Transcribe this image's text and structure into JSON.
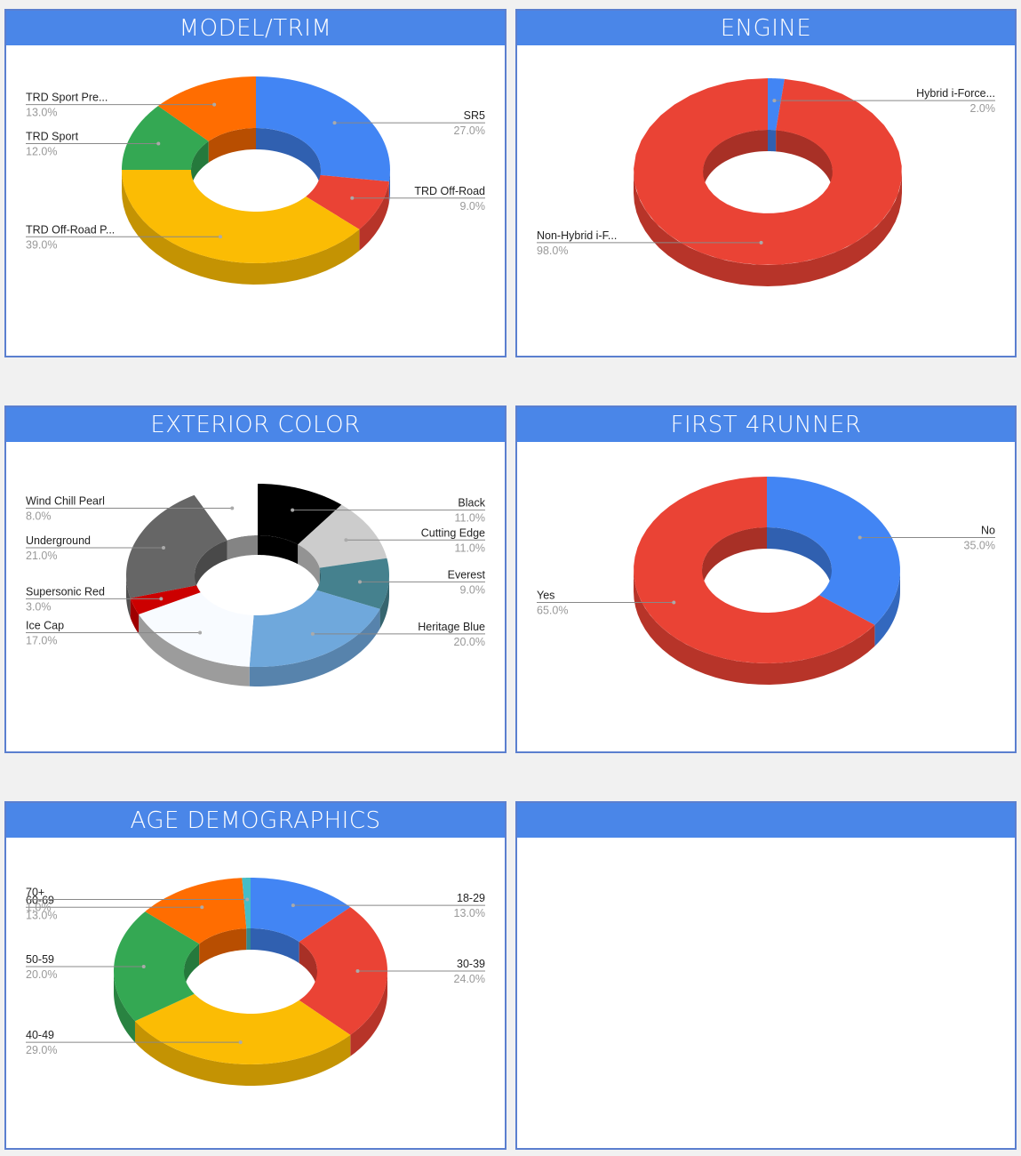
{
  "panels": [
    {
      "id": "model-trim",
      "title": "MODEL/TRIM"
    },
    {
      "id": "engine",
      "title": "ENGINE"
    },
    {
      "id": "exterior-color",
      "title": "EXTERIOR COLOR"
    },
    {
      "id": "first-4runner",
      "title": "FIRST 4RUNNER"
    },
    {
      "id": "age-demographics",
      "title": "AGE DEMOGRAPHICS"
    },
    {
      "id": "empty",
      "title": ""
    }
  ],
  "colors": {
    "header": "#4a86e8",
    "border": "#5b7fcf",
    "background": "#f1f1f1"
  },
  "chart_data": [
    {
      "type": "pie",
      "style": "3d-donut",
      "title": "MODEL/TRIM",
      "categories": [
        "SR5",
        "TRD Off-Road",
        "TRD Off-Road P...",
        "TRD Sport",
        "TRD Sport Pre..."
      ],
      "values": [
        27.0,
        9.0,
        39.0,
        12.0,
        13.0
      ],
      "colors": [
        "#4285f4",
        "#ea4335",
        "#fbbc04",
        "#34a853",
        "#ff6d01"
      ],
      "labels": [
        "27.0%",
        "9.0%",
        "39.0%",
        "12.0%",
        "13.0%"
      ]
    },
    {
      "type": "pie",
      "style": "3d-donut",
      "title": "ENGINE",
      "categories": [
        "Hybrid i-Force...",
        "Non-Hybrid i-F..."
      ],
      "values": [
        2.0,
        98.0
      ],
      "colors": [
        "#4285f4",
        "#ea4335"
      ],
      "labels": [
        "2.0%",
        "98.0%"
      ]
    },
    {
      "type": "pie",
      "style": "3d-donut",
      "title": "EXTERIOR COLOR",
      "categories": [
        "Black",
        "Cutting Edge",
        "Everest",
        "Heritage Blue",
        "Ice Cap",
        "Supersonic Red",
        "Underground",
        "Wind Chill Pearl"
      ],
      "values": [
        11.0,
        11.0,
        9.0,
        20.0,
        17.0,
        3.0,
        21.0,
        8.0
      ],
      "colors": [
        "#000000",
        "#cccccc",
        "#45818e",
        "#6fa8dc",
        "#f8fbff",
        "#cc0000",
        "#666666",
        "#ffffff"
      ],
      "labels": [
        "11.0%",
        "11.0%",
        "9.0%",
        "20.0%",
        "17.0%",
        "3.0%",
        "21.0%",
        "8.0%"
      ]
    },
    {
      "type": "pie",
      "style": "3d-donut",
      "title": "FIRST 4RUNNER",
      "categories": [
        "No",
        "Yes"
      ],
      "values": [
        35.0,
        65.0
      ],
      "colors": [
        "#4285f4",
        "#ea4335"
      ],
      "labels": [
        "35.0%",
        "65.0%"
      ]
    },
    {
      "type": "pie",
      "style": "3d-donut",
      "title": "AGE DEMOGRAPHICS",
      "categories": [
        "18-29",
        "30-39",
        "40-49",
        "50-59",
        "60-69",
        "70+"
      ],
      "values": [
        13.0,
        24.0,
        29.0,
        20.0,
        13.0,
        1.0
      ],
      "colors": [
        "#4285f4",
        "#ea4335",
        "#fbbc04",
        "#34a853",
        "#ff6d01",
        "#46bdc6"
      ],
      "labels": [
        "13.0%",
        "24.0%",
        "29.0%",
        "20.0%",
        "13.0%",
        "1.0%"
      ]
    }
  ]
}
